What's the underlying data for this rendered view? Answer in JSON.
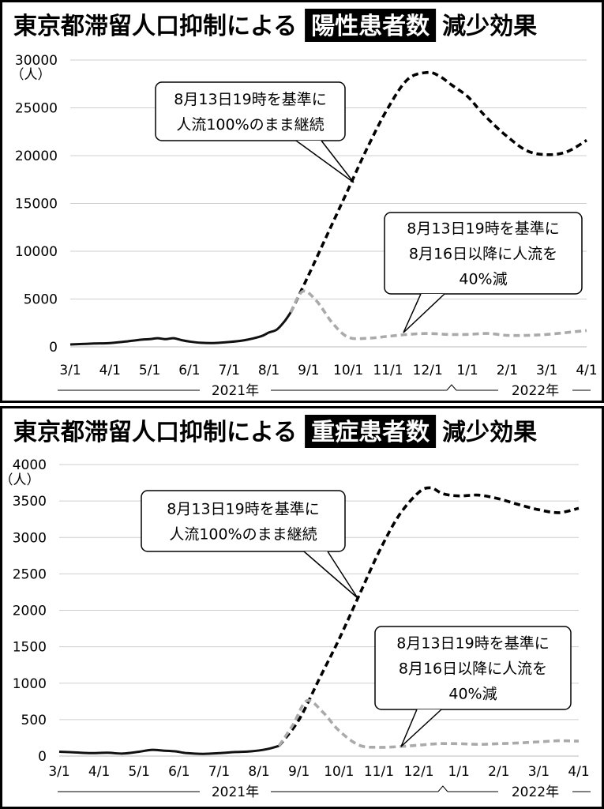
{
  "chart_data": [
    {
      "type": "line",
      "title": {
        "before": "東京都滞留人口抑制による",
        "highlight": "陽性患者数",
        "after": "減少効果"
      },
      "ylabel": "（人）",
      "ylim": [
        0,
        30000
      ],
      "yticks": [
        0,
        5000,
        10000,
        15000,
        20000,
        25000,
        30000
      ],
      "yticklabels": [
        "0",
        "5000",
        "10000",
        "15000",
        "20000",
        "25000",
        "30000"
      ],
      "xlim": [
        0,
        13
      ],
      "xticks": [
        0,
        1,
        2,
        3,
        4,
        5,
        6,
        7,
        8,
        9,
        10,
        11,
        12,
        13
      ],
      "xticklabels": [
        "3/1",
        "4/1",
        "5/1",
        "6/1",
        "7/1",
        "8/1",
        "9/1",
        "10/1",
        "11/1",
        "12/1",
        "1/1",
        "2/1",
        "3/1",
        "4/1"
      ],
      "year_labels": [
        "2021年",
        "2022年"
      ],
      "grid": true,
      "series": [
        {
          "style": "solid",
          "color": "#111111",
          "x": [
            0,
            0.3,
            0.6,
            1,
            1.4,
            1.8,
            2,
            2.2,
            2.4,
            2.6,
            2.8,
            3.0,
            3.3,
            3.6,
            4.0,
            4.4,
            4.8,
            5.0,
            5.2,
            5.4,
            5.55
          ],
          "y": [
            250,
            300,
            350,
            400,
            550,
            750,
            800,
            900,
            800,
            900,
            700,
            550,
            420,
            400,
            500,
            700,
            1100,
            1500,
            1800,
            2700,
            3600
          ]
        },
        {
          "style": "dashed",
          "color": "#000000",
          "x": [
            5.55,
            6.0,
            6.5,
            7.0,
            7.5,
            8.0,
            8.5,
            9.0,
            9.3,
            9.6,
            10.0,
            10.3,
            10.6,
            11.0,
            11.5,
            12.0,
            12.5,
            13.0
          ],
          "y": [
            3600,
            7500,
            12000,
            16500,
            21000,
            25000,
            28000,
            28700,
            28300,
            27400,
            26200,
            24800,
            23500,
            22000,
            20500,
            20100,
            20400,
            21600
          ]
        },
        {
          "style": "dashed",
          "color": "#aaaaaa",
          "x": [
            5.55,
            5.85,
            6.2,
            6.6,
            7.0,
            7.5,
            8.0,
            8.5,
            9.0,
            9.5,
            10.0,
            10.5,
            11.0,
            11.5,
            12.0,
            12.5,
            13.0
          ],
          "y": [
            3600,
            5800,
            4800,
            2500,
            1000,
            900,
            1100,
            1300,
            1400,
            1300,
            1300,
            1400,
            1200,
            1200,
            1300,
            1500,
            1700
          ]
        }
      ],
      "callouts": [
        {
          "lines": [
            "8月13日19時を基準に",
            "人流100%のまま継続"
          ]
        },
        {
          "lines": [
            "8月13日19時を基準に",
            "8月16日以降に人流を",
            "40%減"
          ]
        }
      ]
    },
    {
      "type": "line",
      "title": {
        "before": "東京都滞留人口抑制による",
        "highlight": "重症患者数",
        "after": "減少効果"
      },
      "ylabel": "（人）",
      "ylim": [
        0,
        4000
      ],
      "yticks": [
        0,
        500,
        1000,
        1500,
        2000,
        2500,
        3000,
        3500,
        4000
      ],
      "yticklabels": [
        "0",
        "500",
        "1000",
        "1500",
        "2000",
        "2500",
        "3000",
        "3500",
        "4000"
      ],
      "xlim": [
        0,
        13
      ],
      "xticks": [
        0,
        1,
        2,
        3,
        4,
        5,
        6,
        7,
        8,
        9,
        10,
        11,
        12,
        13
      ],
      "xticklabels": [
        "3/1",
        "4/1",
        "5/1",
        "6/1",
        "7/1",
        "8/1",
        "9/1",
        "10/1",
        "11/1",
        "12/1",
        "1/1",
        "2/1",
        "3/1",
        "4/1"
      ],
      "year_labels": [
        "2021年",
        "2022年"
      ],
      "grid": true,
      "series": [
        {
          "style": "solid",
          "color": "#111111",
          "x": [
            0,
            0.4,
            0.8,
            1.2,
            1.6,
            2.0,
            2.3,
            2.6,
            2.9,
            3.2,
            3.6,
            4.0,
            4.4,
            4.8,
            5.2,
            5.5
          ],
          "y": [
            60,
            50,
            40,
            45,
            35,
            60,
            85,
            75,
            65,
            40,
            30,
            40,
            55,
            65,
            95,
            140
          ]
        },
        {
          "style": "dashed",
          "color": "#000000",
          "x": [
            5.5,
            6.0,
            6.5,
            7.0,
            7.5,
            8.0,
            8.5,
            9.0,
            9.3,
            9.6,
            10.0,
            10.5,
            11.0,
            11.5,
            12.0,
            12.5,
            13.0
          ],
          "y": [
            140,
            500,
            1050,
            1600,
            2200,
            2800,
            3300,
            3620,
            3680,
            3600,
            3570,
            3580,
            3530,
            3450,
            3380,
            3340,
            3400
          ]
        },
        {
          "style": "dashed",
          "color": "#aaaaaa",
          "x": [
            5.5,
            5.85,
            6.2,
            6.6,
            7.0,
            7.5,
            8.0,
            8.5,
            9.0,
            9.5,
            10.0,
            10.5,
            11.0,
            11.5,
            12.0,
            12.5,
            13.0
          ],
          "y": [
            140,
            430,
            760,
            600,
            350,
            150,
            120,
            130,
            150,
            170,
            170,
            160,
            170,
            180,
            195,
            210,
            205
          ]
        }
      ],
      "callouts": [
        {
          "lines": [
            "8月13日19時を基準に",
            "人流100%のまま継続"
          ]
        },
        {
          "lines": [
            "8月13日19時を基準に",
            "8月16日以降に人流を",
            "40%減"
          ]
        }
      ]
    }
  ]
}
